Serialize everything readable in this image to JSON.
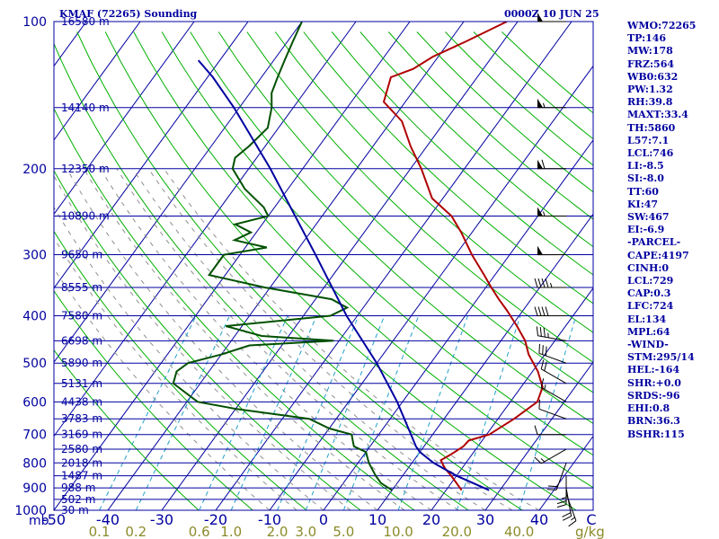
{
  "header": {
    "title": "KMAF (72265) Sounding",
    "datetime": "0000Z 10 JUN 25"
  },
  "indices": [
    "WMO:72265",
    "TP:146",
    "MW:178",
    "FRZ:564",
    "WB0:632",
    "PW:1.32",
    "RH:39.8",
    "MAXT:33.4",
    "TH:5860",
    "L57:7.1",
    "LCL:746",
    "LI:-8.5",
    "SI:-8.0",
    "TT:60",
    "KI:47",
    "SW:467",
    "EI:-6.9",
    "-PARCEL-",
    "CAPE:4197",
    "CINH:0",
    "LCL:729",
    "CAP:0.3",
    "LFC:724",
    "EL:134",
    "MPL:64",
    "-WIND-",
    "STM:295/14",
    "HEL:-164",
    "SHR:+0.0",
    "SRDS:-96",
    "EHI:0.8",
    "BRN:36.3",
    "BSHR:115"
  ],
  "chart_data": {
    "type": "line",
    "plot": "skew-t log-p",
    "x_axis": {
      "label": "C",
      "unit_prefix": "mb",
      "range": [
        -50,
        50
      ],
      "ticks": [
        -50,
        -40,
        -30,
        -20,
        -10,
        0,
        10,
        20,
        30,
        40
      ]
    },
    "y_axis": {
      "scale": "log",
      "range": [
        1000,
        100
      ],
      "ticks": [
        100,
        200,
        300,
        400,
        500,
        600,
        700,
        800,
        900,
        1000
      ]
    },
    "height_labels": [
      {
        "p": 100,
        "text": "16580 m"
      },
      {
        "p": 150,
        "text": "14140 m"
      },
      {
        "p": 200,
        "text": "12350 m"
      },
      {
        "p": 250,
        "text": "10890 m"
      },
      {
        "p": 300,
        "text": "9650 m"
      },
      {
        "p": 350,
        "text": "8555 m"
      },
      {
        "p": 400,
        "text": "7580 m"
      },
      {
        "p": 450,
        "text": "6698 m"
      },
      {
        "p": 500,
        "text": "5890 m"
      },
      {
        "p": 550,
        "text": "5131 m"
      },
      {
        "p": 600,
        "text": "4438 m"
      },
      {
        "p": 650,
        "text": "3783 m"
      },
      {
        "p": 700,
        "text": "3169 m"
      },
      {
        "p": 750,
        "text": "2580 m"
      },
      {
        "p": 800,
        "text": "2018 m"
      },
      {
        "p": 850,
        "text": "1487 m"
      },
      {
        "p": 900,
        "text": "988 m"
      },
      {
        "p": 950,
        "text": "502 m"
      },
      {
        "p": 1000,
        "text": "30 m"
      }
    ],
    "mixing_ratio": {
      "unit": "g/kg",
      "values": [
        0.1,
        0.2,
        0.6,
        1.0,
        2.0,
        3.0,
        5.0,
        10.0,
        20.0,
        40.0
      ],
      "labels": [
        "0.1",
        "0.2",
        "0.6",
        "1.0",
        "2.0",
        "3.0",
        "5.0",
        "10.0",
        "20.0",
        "40.0"
      ]
    },
    "series": [
      {
        "role": "temperature",
        "color": "#b00000",
        "points": [
          [
            910,
            22.9
          ],
          [
            880,
            21
          ],
          [
            850,
            19
          ],
          [
            820,
            16.8
          ],
          [
            790,
            15
          ],
          [
            770,
            16
          ],
          [
            740,
            17.3
          ],
          [
            720,
            17.5
          ],
          [
            700,
            20.5
          ],
          [
            650,
            23
          ],
          [
            600,
            25
          ],
          [
            560,
            24
          ],
          [
            520,
            21
          ],
          [
            480,
            17
          ],
          [
            450,
            14.5
          ],
          [
            420,
            11
          ],
          [
            390,
            7
          ],
          [
            370,
            4
          ],
          [
            350,
            1
          ],
          [
            330,
            -2
          ],
          [
            300,
            -7
          ],
          [
            270,
            -12
          ],
          [
            250,
            -16
          ],
          [
            230,
            -22
          ],
          [
            200,
            -28
          ],
          [
            180,
            -33
          ],
          [
            160,
            -38
          ],
          [
            146,
            -44
          ],
          [
            130,
            -46
          ],
          [
            125,
            -43
          ],
          [
            118,
            -41
          ],
          [
            110,
            -37
          ],
          [
            100,
            -32
          ]
        ]
      },
      {
        "role": "dewpoint",
        "color": "#005000",
        "points": [
          [
            910,
            10
          ],
          [
            880,
            7
          ],
          [
            850,
            5
          ],
          [
            800,
            2
          ],
          [
            760,
            0
          ],
          [
            740,
            -3
          ],
          [
            720,
            -4
          ],
          [
            700,
            -5
          ],
          [
            680,
            -10
          ],
          [
            650,
            -15
          ],
          [
            620,
            -30
          ],
          [
            600,
            -38
          ],
          [
            550,
            -45
          ],
          [
            520,
            -46
          ],
          [
            500,
            -45
          ],
          [
            480,
            -40
          ],
          [
            460,
            -36
          ],
          [
            450,
            -21
          ],
          [
            440,
            -35
          ],
          [
            420,
            -43
          ],
          [
            400,
            -25
          ],
          [
            385,
            -23
          ],
          [
            370,
            -27
          ],
          [
            350,
            -41
          ],
          [
            330,
            -53
          ],
          [
            300,
            -53
          ],
          [
            290,
            -46
          ],
          [
            280,
            -53
          ],
          [
            270,
            -51
          ],
          [
            260,
            -55
          ],
          [
            250,
            -50
          ],
          [
            240,
            -52
          ],
          [
            220,
            -58
          ],
          [
            200,
            -63
          ],
          [
            190,
            -64
          ],
          [
            180,
            -63
          ],
          [
            165,
            -62
          ],
          [
            150,
            -64
          ],
          [
            140,
            -66
          ],
          [
            130,
            -67
          ],
          [
            120,
            -68
          ],
          [
            110,
            -69
          ],
          [
            100,
            -70
          ]
        ]
      },
      {
        "role": "parcel",
        "color": "#0000a0",
        "points": [
          [
            910,
            28
          ],
          [
            850,
            20
          ],
          [
            800,
            14
          ],
          [
            760,
            10
          ],
          [
            740,
            8.5
          ],
          [
            700,
            6
          ],
          [
            600,
            -1
          ],
          [
            500,
            -10
          ],
          [
            400,
            -22
          ],
          [
            300,
            -36
          ],
          [
            250,
            -45
          ],
          [
            200,
            -56
          ],
          [
            150,
            -71
          ],
          [
            130,
            -79
          ],
          [
            120,
            -84
          ]
        ]
      }
    ],
    "wind_profile": [
      {
        "p": 925,
        "dir": 160,
        "spd": 15
      },
      {
        "p": 900,
        "dir": 170,
        "spd": 20
      },
      {
        "p": 850,
        "dir": 180,
        "spd": 25
      },
      {
        "p": 800,
        "dir": 200,
        "spd": 20
      },
      {
        "p": 750,
        "dir": 240,
        "spd": 15
      },
      {
        "p": 700,
        "dir": 270,
        "spd": 10
      },
      {
        "p": 650,
        "dir": 290,
        "spd": 10
      },
      {
        "p": 600,
        "dir": 300,
        "spd": 15
      },
      {
        "p": 550,
        "dir": 300,
        "spd": 20
      },
      {
        "p": 500,
        "dir": 290,
        "spd": 30
      },
      {
        "p": 450,
        "dir": 280,
        "spd": 35
      },
      {
        "p": 400,
        "dir": 270,
        "spd": 40
      },
      {
        "p": 350,
        "dir": 270,
        "spd": 45
      },
      {
        "p": 300,
        "dir": 270,
        "spd": 50
      },
      {
        "p": 250,
        "dir": 270,
        "spd": 55
      },
      {
        "p": 200,
        "dir": 270,
        "spd": 60
      },
      {
        "p": 150,
        "dir": 270,
        "spd": 55
      },
      {
        "p": 100,
        "dir": 270,
        "spd": 50
      }
    ],
    "colors": {
      "frame": "#0000a0",
      "isotherm": "#0000a0",
      "dry_adiabat": "#00b000",
      "moist_adiabat": "#909090",
      "mixing": "#20a0c8",
      "mixing_label": "#8b8b2a"
    }
  }
}
